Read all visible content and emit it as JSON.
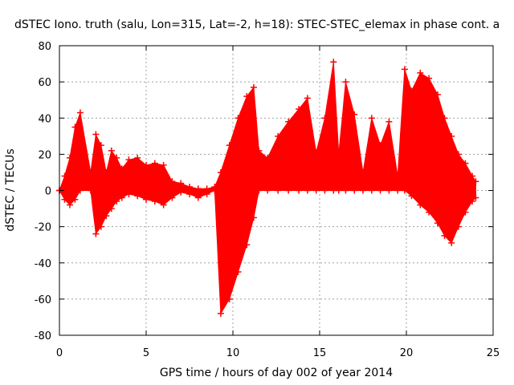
{
  "chart_data": {
    "type": "scatter",
    "title": "dSTEC Iono. truth (salu, Lon=315, Lat=-2, h=18): STEC-STEC_elemax in phase cont. a",
    "xlabel": "GPS time / hours of day 002 of year 2014",
    "ylabel": "dSTEC  / TECUs",
    "xlim": [
      0,
      25
    ],
    "ylim": [
      -80,
      80
    ],
    "xticks": [
      0,
      5,
      10,
      15,
      20,
      25
    ],
    "yticks": [
      -80,
      -60,
      -40,
      -20,
      0,
      20,
      40,
      60,
      80
    ],
    "xtick_labels": [
      "0",
      "5",
      "10",
      "15",
      "20",
      "25"
    ],
    "ytick_labels": [
      "-80",
      "-60",
      "-40",
      "-20",
      "0",
      "20",
      "40",
      "60",
      "80"
    ],
    "grid": true,
    "marker": "+",
    "series": [
      {
        "name": "STEC-STEC_elemax",
        "color": "#ff0000",
        "x": [
          0.0,
          0.3,
          0.6,
          0.9,
          1.2,
          1.8,
          2.1,
          2.4,
          2.7,
          3.0,
          3.3,
          3.6,
          4.0,
          4.5,
          5.0,
          5.5,
          6.0,
          6.5,
          7.0,
          7.5,
          8.0,
          8.5,
          8.95,
          9.3,
          9.8,
          10.3,
          10.8,
          11.2,
          11.5,
          12.0,
          12.6,
          13.2,
          13.8,
          14.3,
          14.8,
          15.3,
          15.8,
          16.1,
          16.5,
          17.0,
          17.5,
          18.0,
          18.5,
          19.0,
          19.5,
          19.9,
          20.3,
          20.8,
          21.3,
          21.8,
          22.2,
          22.6,
          23.0,
          23.4,
          23.8,
          24.0
        ],
        "upper": [
          0,
          8,
          18,
          35,
          43,
          10,
          31,
          25,
          10,
          22,
          18,
          12,
          17,
          18,
          14,
          15,
          14,
          5,
          4,
          2,
          1,
          1,
          2,
          10,
          25,
          40,
          52,
          57,
          22,
          18,
          30,
          38,
          45,
          51,
          21,
          40,
          71,
          20,
          60,
          42,
          10,
          40,
          25,
          38,
          8,
          67,
          55,
          65,
          62,
          53,
          40,
          30,
          20,
          15,
          8,
          5
        ],
        "lower": [
          0,
          -5,
          -8,
          -5,
          0,
          0,
          -24,
          -20,
          -14,
          -10,
          -6,
          -4,
          -2,
          -3,
          -5,
          -6,
          -8,
          -4,
          -1,
          -2,
          -4,
          -2,
          0,
          -68,
          -60,
          -45,
          -30,
          -15,
          0,
          0,
          0,
          0,
          0,
          0,
          0,
          0,
          0,
          0,
          0,
          0,
          0,
          0,
          0,
          0,
          0,
          0,
          -3,
          -8,
          -12,
          -18,
          -25,
          -29,
          -20,
          -12,
          -6,
          -4
        ]
      }
    ]
  }
}
